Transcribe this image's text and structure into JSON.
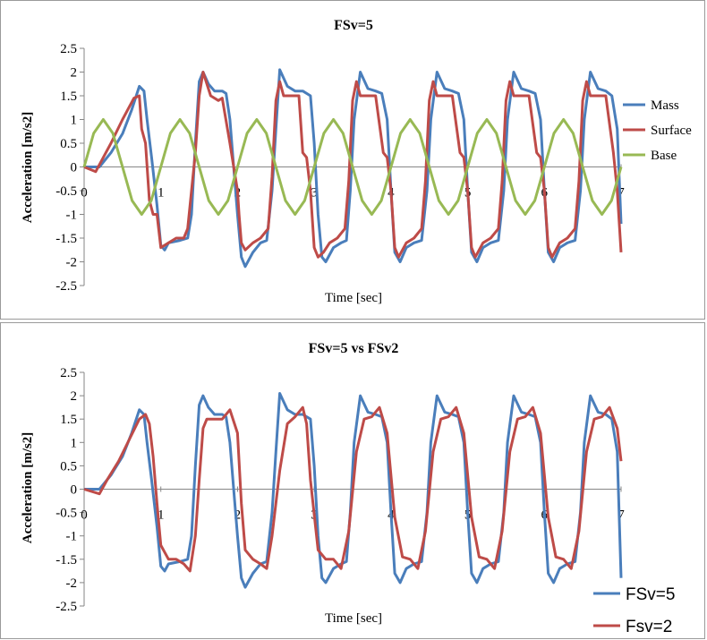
{
  "chart_data": [
    {
      "type": "line",
      "title": "FSv=5",
      "xlabel": "Time [sec]",
      "ylabel": "Acceleration [m/s2]",
      "xlim": [
        0,
        7
      ],
      "ylim": [
        -2.5,
        2.5
      ],
      "xticks": [
        "0",
        "1",
        "2",
        "3",
        "4",
        "5",
        "6",
        "7"
      ],
      "yticks": [
        "2.5",
        "2",
        "1.5",
        "1",
        "0.5",
        "0",
        "-0.5",
        "-1",
        "-1.5",
        "-2",
        "-2.5"
      ],
      "grid": false,
      "legend_position": "right",
      "series": [
        {
          "name": "Mass",
          "color": "#4a7ebb",
          "x": [
            0,
            0.2,
            0.35,
            0.5,
            0.62,
            0.72,
            0.78,
            0.82,
            0.88,
            0.95,
            1.0,
            1.05,
            1.1,
            1.25,
            1.35,
            1.4,
            1.45,
            1.5,
            1.55,
            1.62,
            1.7,
            1.8,
            1.85,
            1.9,
            1.95,
            2.0,
            2.05,
            2.1,
            2.2,
            2.3,
            2.38,
            2.45,
            2.5,
            2.55,
            2.65,
            2.75,
            2.85,
            2.95,
            3.0,
            3.05,
            3.1,
            3.15,
            3.25,
            3.35,
            3.42,
            3.47,
            3.52,
            3.6,
            3.7,
            3.8,
            3.88,
            3.95,
            4.0,
            4.05,
            4.12,
            4.2,
            4.3,
            4.4,
            4.47,
            4.52,
            4.6,
            4.7,
            4.8,
            4.88,
            4.95,
            5.0,
            5.05,
            5.12,
            5.2,
            5.3,
            5.4,
            5.47,
            5.52,
            5.6,
            5.7,
            5.8,
            5.88,
            5.95,
            6.0,
            6.05,
            6.12,
            6.2,
            6.3,
            6.4,
            6.47,
            6.52,
            6.6,
            6.7,
            6.8,
            6.88,
            6.95,
            7.0
          ],
          "y": [
            0,
            0,
            0.3,
            0.7,
            1.2,
            1.7,
            1.6,
            1.0,
            0.2,
            -0.8,
            -1.65,
            -1.75,
            -1.6,
            -1.55,
            -1.5,
            -1.0,
            0.5,
            1.8,
            2.0,
            1.75,
            1.6,
            1.6,
            1.55,
            1.0,
            0.0,
            -1.0,
            -1.9,
            -2.1,
            -1.8,
            -1.6,
            -1.55,
            -0.5,
            0.8,
            2.05,
            1.7,
            1.6,
            1.6,
            1.5,
            0.5,
            -1.0,
            -1.9,
            -2.0,
            -1.7,
            -1.6,
            -1.55,
            -0.5,
            1.0,
            2.0,
            1.65,
            1.6,
            1.55,
            1.0,
            -0.5,
            -1.8,
            -2.0,
            -1.7,
            -1.6,
            -1.55,
            -0.5,
            1.0,
            2.0,
            1.65,
            1.6,
            1.55,
            1.0,
            -0.5,
            -1.8,
            -2.0,
            -1.7,
            -1.6,
            -1.55,
            -0.5,
            1.0,
            2.0,
            1.65,
            1.6,
            1.55,
            1.0,
            -0.5,
            -1.8,
            -2.0,
            -1.7,
            -1.6,
            -1.55,
            -0.5,
            1.0,
            2.0,
            1.65,
            1.6,
            1.5,
            0.8,
            -1.2
          ]
        },
        {
          "name": "Surface",
          "color": "#be4b48",
          "x": [
            0,
            0.15,
            0.25,
            0.35,
            0.5,
            0.65,
            0.72,
            0.75,
            0.8,
            0.85,
            0.9,
            0.95,
            1.0,
            1.1,
            1.2,
            1.3,
            1.35,
            1.4,
            1.45,
            1.5,
            1.55,
            1.65,
            1.75,
            1.8,
            1.9,
            2.0,
            2.02,
            2.05,
            2.1,
            2.2,
            2.3,
            2.4,
            2.45,
            2.5,
            2.55,
            2.6,
            2.7,
            2.8,
            2.85,
            2.9,
            2.95,
            3.0,
            3.05,
            3.12,
            3.2,
            3.3,
            3.4,
            3.45,
            3.5,
            3.55,
            3.6,
            3.7,
            3.8,
            3.9,
            3.95,
            4.0,
            4.05,
            4.1,
            4.2,
            4.3,
            4.4,
            4.45,
            4.5,
            4.55,
            4.6,
            4.7,
            4.8,
            4.9,
            4.95,
            5.0,
            5.05,
            5.1,
            5.2,
            5.3,
            5.4,
            5.45,
            5.5,
            5.55,
            5.6,
            5.7,
            5.8,
            5.9,
            5.95,
            6.0,
            6.05,
            6.1,
            6.2,
            6.3,
            6.4,
            6.45,
            6.5,
            6.55,
            6.6,
            6.7,
            6.8,
            6.9,
            6.95,
            7.0
          ],
          "y": [
            0,
            -0.1,
            0.2,
            0.5,
            1.0,
            1.45,
            1.5,
            0.8,
            0.5,
            -0.7,
            -1.0,
            -1.0,
            -1.7,
            -1.6,
            -1.5,
            -1.5,
            -1.3,
            -0.5,
            0.3,
            1.5,
            2.0,
            1.5,
            1.4,
            1.45,
            0.5,
            -0.5,
            -1.0,
            -1.6,
            -1.75,
            -1.6,
            -1.5,
            -1.3,
            -0.2,
            1.4,
            1.8,
            1.5,
            1.5,
            1.5,
            0.3,
            0.2,
            -0.5,
            -1.7,
            -1.9,
            -1.8,
            -1.6,
            -1.5,
            -1.3,
            -0.3,
            1.4,
            1.8,
            1.5,
            1.5,
            1.5,
            0.3,
            0.2,
            -0.5,
            -1.7,
            -1.9,
            -1.6,
            -1.5,
            -1.3,
            -0.3,
            1.4,
            1.8,
            1.5,
            1.5,
            1.5,
            0.3,
            0.2,
            -0.5,
            -1.7,
            -1.9,
            -1.6,
            -1.5,
            -1.3,
            -0.3,
            1.4,
            1.8,
            1.5,
            1.5,
            1.5,
            0.3,
            0.2,
            -0.5,
            -1.7,
            -1.9,
            -1.6,
            -1.5,
            -1.3,
            -0.3,
            1.4,
            1.8,
            1.5,
            1.5,
            1.5,
            0.3,
            -0.5,
            -1.8
          ]
        },
        {
          "name": "Base",
          "color": "#98b954",
          "x": [
            0,
            0.125,
            0.25,
            0.375,
            0.5,
            0.625,
            0.75,
            0.875,
            1.0,
            1.125,
            1.25,
            1.375,
            1.5,
            1.625,
            1.75,
            1.875,
            2.0,
            2.125,
            2.25,
            2.375,
            2.5,
            2.625,
            2.75,
            2.875,
            3.0,
            3.125,
            3.25,
            3.375,
            3.5,
            3.625,
            3.75,
            3.875,
            4.0,
            4.125,
            4.25,
            4.375,
            4.5,
            4.625,
            4.75,
            4.875,
            5.0,
            5.125,
            5.25,
            5.375,
            5.5,
            5.625,
            5.75,
            5.875,
            6.0,
            6.125,
            6.25,
            6.375,
            6.5,
            6.625,
            6.75,
            6.875,
            7.0
          ],
          "y": [
            0,
            0.71,
            1.0,
            0.71,
            0,
            -0.71,
            -1.0,
            -0.71,
            0,
            0.71,
            1.0,
            0.71,
            0,
            -0.71,
            -1.0,
            -0.71,
            0,
            0.71,
            1.0,
            0.71,
            0,
            -0.71,
            -1.0,
            -0.71,
            0,
            0.71,
            1.0,
            0.71,
            0,
            -0.71,
            -1.0,
            -0.71,
            0,
            0.71,
            1.0,
            0.71,
            0,
            -0.71,
            -1.0,
            -0.71,
            0,
            0.71,
            1.0,
            0.71,
            0,
            -0.71,
            -1.0,
            -0.71,
            0,
            0.71,
            1.0,
            0.71,
            0,
            -0.71,
            -1.0,
            -0.71,
            0
          ]
        }
      ]
    },
    {
      "type": "line",
      "title": "FSv=5 vs FSv2",
      "xlabel": "Time [sec]",
      "ylabel": "Acceleration [m/s2]",
      "xlim": [
        0,
        7
      ],
      "ylim": [
        -2.5,
        2.5
      ],
      "xticks": [
        "0",
        "1",
        "2",
        "3",
        "4",
        "5",
        "6",
        "7"
      ],
      "yticks": [
        "2.5",
        "2",
        "1.5",
        "1",
        "0.5",
        "0",
        "-0.5",
        "-1",
        "-1.5",
        "-2",
        "-2.5"
      ],
      "grid": false,
      "legend_position": "bottom-right",
      "series": [
        {
          "name": "FSv=5",
          "color": "#4a7ebb",
          "x": [
            0,
            0.2,
            0.35,
            0.5,
            0.62,
            0.72,
            0.78,
            0.82,
            0.88,
            0.95,
            1.0,
            1.05,
            1.1,
            1.25,
            1.35,
            1.4,
            1.45,
            1.5,
            1.55,
            1.62,
            1.7,
            1.8,
            1.85,
            1.9,
            1.95,
            2.0,
            2.05,
            2.1,
            2.2,
            2.3,
            2.38,
            2.45,
            2.5,
            2.55,
            2.65,
            2.75,
            2.85,
            2.95,
            3.0,
            3.05,
            3.1,
            3.15,
            3.25,
            3.35,
            3.42,
            3.47,
            3.52,
            3.6,
            3.7,
            3.8,
            3.88,
            3.95,
            4.0,
            4.05,
            4.12,
            4.2,
            4.3,
            4.4,
            4.47,
            4.52,
            4.6,
            4.7,
            4.8,
            4.88,
            4.95,
            5.0,
            5.05,
            5.12,
            5.2,
            5.3,
            5.4,
            5.47,
            5.52,
            5.6,
            5.7,
            5.8,
            5.88,
            5.95,
            6.0,
            6.05,
            6.12,
            6.2,
            6.3,
            6.4,
            6.47,
            6.52,
            6.6,
            6.7,
            6.8,
            6.88,
            6.95,
            7.0
          ],
          "y": [
            0,
            0,
            0.3,
            0.7,
            1.2,
            1.7,
            1.6,
            1.0,
            0.2,
            -0.8,
            -1.65,
            -1.75,
            -1.6,
            -1.55,
            -1.5,
            -1.0,
            0.5,
            1.8,
            2.0,
            1.75,
            1.6,
            1.6,
            1.55,
            1.0,
            0.0,
            -1.0,
            -1.9,
            -2.1,
            -1.8,
            -1.6,
            -1.55,
            -0.5,
            0.8,
            2.05,
            1.7,
            1.6,
            1.6,
            1.5,
            0.5,
            -1.0,
            -1.9,
            -2.0,
            -1.7,
            -1.6,
            -1.55,
            -0.5,
            1.0,
            2.0,
            1.65,
            1.6,
            1.55,
            1.0,
            -0.5,
            -1.8,
            -2.0,
            -1.7,
            -1.6,
            -1.55,
            -0.5,
            1.0,
            2.0,
            1.65,
            1.6,
            1.55,
            1.0,
            -0.5,
            -1.8,
            -2.0,
            -1.7,
            -1.6,
            -1.55,
            -0.5,
            1.0,
            2.0,
            1.65,
            1.6,
            1.55,
            1.0,
            -0.5,
            -1.8,
            -2.0,
            -1.7,
            -1.6,
            -1.55,
            -0.5,
            1.0,
            2.0,
            1.65,
            1.6,
            1.5,
            0.8,
            -1.9
          ]
        },
        {
          "name": "Fsv=2",
          "color": "#be4b48",
          "x": [
            0,
            0.2,
            0.3,
            0.45,
            0.6,
            0.72,
            0.8,
            0.85,
            0.9,
            0.95,
            1.0,
            1.1,
            1.2,
            1.3,
            1.38,
            1.45,
            1.5,
            1.55,
            1.6,
            1.7,
            1.8,
            1.9,
            2.0,
            2.05,
            2.1,
            2.2,
            2.3,
            2.38,
            2.45,
            2.55,
            2.65,
            2.75,
            2.85,
            2.9,
            2.95,
            3.05,
            3.15,
            3.25,
            3.35,
            3.45,
            3.55,
            3.65,
            3.75,
            3.85,
            3.95,
            4.05,
            4.15,
            4.25,
            4.35,
            4.45,
            4.55,
            4.65,
            4.75,
            4.85,
            4.95,
            5.05,
            5.15,
            5.25,
            5.35,
            5.45,
            5.55,
            5.65,
            5.75,
            5.85,
            5.95,
            6.05,
            6.15,
            6.25,
            6.35,
            6.45,
            6.55,
            6.65,
            6.75,
            6.85,
            6.95,
            7.0
          ],
          "y": [
            0,
            -0.1,
            0.2,
            0.6,
            1.1,
            1.5,
            1.6,
            1.4,
            0.7,
            -0.3,
            -1.2,
            -1.5,
            -1.5,
            -1.6,
            -1.75,
            -1.0,
            0.2,
            1.3,
            1.5,
            1.5,
            1.5,
            1.7,
            1.2,
            -0.3,
            -1.3,
            -1.5,
            -1.6,
            -1.7,
            -1.0,
            0.4,
            1.4,
            1.55,
            1.75,
            1.4,
            0.2,
            -1.3,
            -1.5,
            -1.5,
            -1.7,
            -0.9,
            0.8,
            1.5,
            1.55,
            1.75,
            1.2,
            -0.6,
            -1.45,
            -1.5,
            -1.7,
            -0.9,
            0.8,
            1.5,
            1.55,
            1.75,
            1.2,
            -0.6,
            -1.45,
            -1.5,
            -1.7,
            -0.9,
            0.8,
            1.5,
            1.55,
            1.75,
            1.2,
            -0.6,
            -1.45,
            -1.5,
            -1.7,
            -0.9,
            0.8,
            1.5,
            1.55,
            1.75,
            1.3,
            0.6
          ]
        }
      ]
    }
  ]
}
